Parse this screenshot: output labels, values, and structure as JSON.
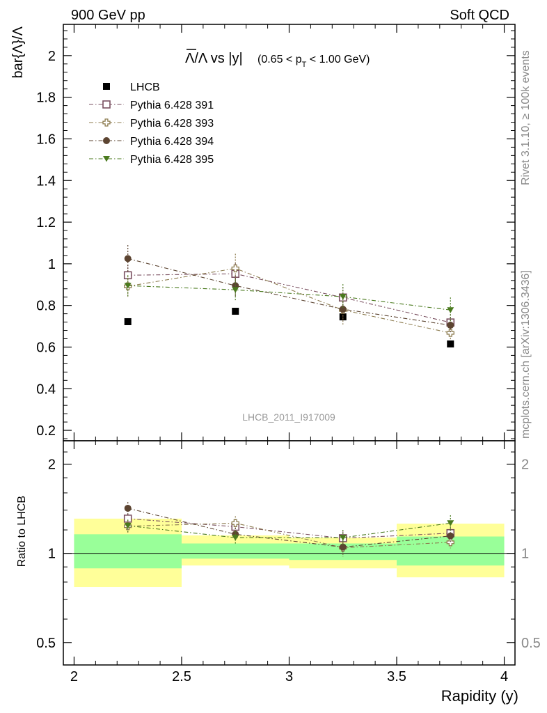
{
  "header": {
    "left": "900 GeV pp",
    "right": "Soft QCD"
  },
  "side_labels": {
    "rivet": "Rivet 3.1.10, ≥ 100k events",
    "source": "mcplots.cern.ch [arXiv:1306.3436]"
  },
  "watermark": "LHCB_2011_I917009",
  "title": {
    "main": "Λ/Λ vs |y|",
    "sub_pre": "(0.65 < p",
    "sub_sub": "T",
    "sub_post": " < 1.00 GeV)"
  },
  "colors": {
    "LHCB": "#000000",
    "391": "#7a5060",
    "393": "#8c7b4e",
    "394": "#5c4431",
    "395": "#4a7a1e",
    "band_outer": "#ffff99",
    "band_inner": "#99ff99"
  },
  "chart_data": [
    {
      "type": "scatter",
      "panel": "main",
      "ylabel": "bar{Λ}/Λ",
      "xlim": [
        1.95,
        4.05
      ],
      "ylim": [
        0.15,
        2.15
      ],
      "yticks": [
        0.2,
        0.4,
        0.6,
        0.8,
        1.0,
        1.2,
        1.4,
        1.6,
        1.8,
        2.0
      ],
      "ytick_labels": [
        "0.2",
        "0.4",
        "0.6",
        "0.8",
        "1",
        "1.2",
        "1.4",
        "1.6",
        "1.8",
        "2"
      ],
      "legend_position": "top-left",
      "x": [
        2.25,
        2.75,
        3.25,
        3.75
      ],
      "series": [
        {
          "name": "LHCB",
          "marker": "filled-square",
          "values": [
            0.722,
            0.772,
            0.745,
            0.615
          ],
          "errors": [
            0.01,
            0.01,
            0.015,
            0.01
          ]
        },
        {
          "name": "Pythia 6.428 391",
          "marker": "open-square",
          "values": [
            0.945,
            0.952,
            0.838,
            0.718
          ],
          "errors": [
            0.05,
            0.05,
            0.05,
            0.04
          ]
        },
        {
          "name": "Pythia 6.428 393",
          "marker": "open-cross",
          "values": [
            0.892,
            0.978,
            0.778,
            0.668
          ],
          "errors": [
            0.05,
            0.07,
            0.07,
            0.03
          ]
        },
        {
          "name": "Pythia 6.428 394",
          "marker": "filled-circle",
          "values": [
            1.025,
            0.895,
            0.782,
            0.705
          ],
          "errors": [
            0.065,
            0.05,
            0.05,
            0.04
          ]
        },
        {
          "name": "Pythia 6.428 395",
          "marker": "filled-triangle-down",
          "values": [
            0.895,
            0.875,
            0.842,
            0.778
          ],
          "errors": [
            0.05,
            0.05,
            0.06,
            0.06
          ]
        }
      ]
    },
    {
      "type": "scatter",
      "panel": "ratio",
      "xlabel": "Rapidity (y)",
      "ylabel": "Ratio to LHCB",
      "log_y": true,
      "xlim": [
        1.95,
        4.05
      ],
      "ylim": [
        0.42,
        2.4
      ],
      "xticks": [
        2.0,
        2.5,
        3.0,
        3.5,
        4.0
      ],
      "xtick_labels": [
        "2",
        "2.5",
        "3",
        "3.5",
        "4"
      ],
      "yticks": [
        0.5,
        1.0,
        2.0
      ],
      "ytick_labels": [
        "0.5",
        "1",
        "2"
      ],
      "reference_line": 1.0,
      "uncertainty_bands": [
        {
          "x_range": [
            2.0,
            2.5
          ],
          "outer": [
            0.77,
            1.31
          ],
          "inner": [
            0.89,
            1.16
          ]
        },
        {
          "x_range": [
            2.5,
            3.0
          ],
          "outer": [
            0.91,
            1.15
          ],
          "inner": [
            0.96,
            1.08
          ]
        },
        {
          "x_range": [
            3.0,
            3.5
          ],
          "outer": [
            0.89,
            1.13
          ],
          "inner": [
            0.95,
            1.08
          ]
        },
        {
          "x_range": [
            3.5,
            4.0
          ],
          "outer": [
            0.83,
            1.26
          ],
          "inner": [
            0.91,
            1.14
          ]
        }
      ],
      "x": [
        2.25,
        2.75,
        3.25,
        3.75
      ],
      "series": [
        {
          "name": "Pythia 6.428 391",
          "values": [
            1.31,
            1.23,
            1.125,
            1.17
          ],
          "errors": [
            0.05,
            0.05,
            0.06,
            0.05
          ]
        },
        {
          "name": "Pythia 6.428 393",
          "values": [
            1.235,
            1.265,
            1.045,
            1.09
          ],
          "errors": [
            0.06,
            0.07,
            0.07,
            0.05
          ]
        },
        {
          "name": "Pythia 6.428 394",
          "values": [
            1.42,
            1.16,
            1.05,
            1.145
          ],
          "errors": [
            0.07,
            0.06,
            0.06,
            0.06
          ]
        },
        {
          "name": "Pythia 6.428 395",
          "values": [
            1.24,
            1.13,
            1.13,
            1.265
          ],
          "errors": [
            0.06,
            0.06,
            0.07,
            0.08
          ]
        }
      ]
    }
  ]
}
